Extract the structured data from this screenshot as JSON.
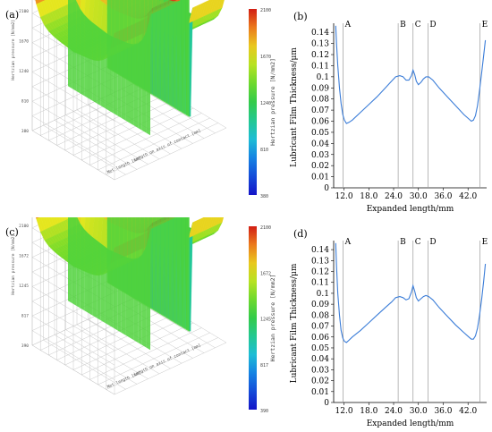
{
  "surface_plots": [
    {
      "label": "(a)",
      "z_axis_title": "Hertzian pressure [N/mm2]",
      "x_axis_title": "Net length [mm]",
      "y_axis_title": "Length on axis of contact [mm]",
      "z_ticks": [
        "380",
        "810",
        "1240",
        "1670",
        "2100"
      ],
      "z_range": [
        0,
        2100
      ],
      "colorbar": {
        "title": "Hertzian pressure [N/mm2]",
        "min": 380,
        "max": 2100,
        "ticks": [
          "2100",
          "1670",
          "1240",
          "810",
          "380"
        ]
      }
    },
    {
      "label": "(c)",
      "z_axis_title": "Hertzian pressure [N/mm2]",
      "x_axis_title": "Net length [mm]",
      "y_axis_title": "Length on axis of contact [mm]",
      "z_ticks": [
        "390",
        "817",
        "1245",
        "1672",
        "2100"
      ],
      "z_range": [
        0,
        2100
      ],
      "colorbar": {
        "title": "Hertzian pressure [N/mm2]",
        "min": 390,
        "max": 2100,
        "ticks": [
          "2100",
          "1672",
          "1245",
          "817",
          "390"
        ]
      }
    }
  ],
  "chart_data": [
    {
      "type": "line",
      "label": "(b)",
      "xlabel": "Expanded length/mm",
      "ylabel": "Lubricant Film Thickness/μm",
      "xlim": [
        9.5,
        46.5
      ],
      "ylim": [
        0,
        0.145
      ],
      "x_ticks": [
        "12.0",
        "18.0",
        "24.0",
        "30.0",
        "36.0",
        "42.0"
      ],
      "x_tick_values": [
        12,
        18,
        24,
        30,
        36,
        42
      ],
      "y_ticks": [
        "0",
        "0.01",
        "0.02",
        "0.03",
        "0.04",
        "0.05",
        "0.06",
        "0.07",
        "0.08",
        "0.09",
        "0.1",
        "0.11",
        "0.12",
        "0.13",
        "0.14"
      ],
      "y_tick_values": [
        0,
        0.01,
        0.02,
        0.03,
        0.04,
        0.05,
        0.06,
        0.07,
        0.08,
        0.09,
        0.1,
        0.11,
        0.12,
        0.13,
        0.14
      ],
      "markers": [
        {
          "label": "A",
          "x": 11.8
        },
        {
          "label": "B",
          "x": 25.1
        },
        {
          "label": "C",
          "x": 28.7
        },
        {
          "label": "D",
          "x": 32.3
        },
        {
          "label": "E",
          "x": 44.9
        }
      ],
      "series": [
        {
          "color": "#3b7dd8",
          "x": [
            10.0,
            10.2,
            10.5,
            10.9,
            11.3,
            11.7,
            12.1,
            12.6,
            13.2,
            14.0,
            16.0,
            18.0,
            20.0,
            22.0,
            23.5,
            24.5,
            25.5,
            26.3,
            27.0,
            27.7,
            28.3,
            28.7,
            29.1,
            29.5,
            30.0,
            30.6,
            31.2,
            31.8,
            32.5,
            33.5,
            35.0,
            37.0,
            39.0,
            41.0,
            42.2,
            42.8,
            43.3,
            43.8,
            44.3,
            44.8,
            45.3,
            45.8,
            46.2
          ],
          "y": [
            0.146,
            0.13,
            0.11,
            0.09,
            0.076,
            0.066,
            0.061,
            0.058,
            0.059,
            0.061,
            0.068,
            0.075,
            0.082,
            0.09,
            0.096,
            0.1,
            0.101,
            0.1,
            0.097,
            0.097,
            0.101,
            0.106,
            0.102,
            0.096,
            0.093,
            0.095,
            0.098,
            0.1,
            0.1,
            0.097,
            0.09,
            0.082,
            0.074,
            0.066,
            0.062,
            0.06,
            0.061,
            0.065,
            0.074,
            0.088,
            0.104,
            0.12,
            0.133
          ]
        }
      ]
    },
    {
      "type": "line",
      "label": "(d)",
      "xlabel": "Expanded length/mm",
      "ylabel": "Lubricant Film Thickness/μm",
      "xlim": [
        9.5,
        46.5
      ],
      "ylim": [
        0,
        0.145
      ],
      "x_ticks": [
        "12.0",
        "18.0",
        "24.0",
        "30.0",
        "36.0",
        "42.0"
      ],
      "x_tick_values": [
        12,
        18,
        24,
        30,
        36,
        42
      ],
      "y_ticks": [
        "0",
        "0.01",
        "0.02",
        "0.03",
        "0.04",
        "0.05",
        "0.06",
        "0.07",
        "0.08",
        "0.09",
        "0.1",
        "0.11",
        "0.12",
        "0.13",
        "0.14"
      ],
      "y_tick_values": [
        0,
        0.01,
        0.02,
        0.03,
        0.04,
        0.05,
        0.06,
        0.07,
        0.08,
        0.09,
        0.1,
        0.11,
        0.12,
        0.13,
        0.14
      ],
      "markers": [
        {
          "label": "A",
          "x": 11.8
        },
        {
          "label": "B",
          "x": 25.1
        },
        {
          "label": "C",
          "x": 28.7
        },
        {
          "label": "D",
          "x": 32.3
        },
        {
          "label": "E",
          "x": 44.9
        }
      ],
      "series": [
        {
          "color": "#3b7dd8",
          "x": [
            10.0,
            10.2,
            10.5,
            10.9,
            11.3,
            11.7,
            12.1,
            12.6,
            13.2,
            14.0,
            16.0,
            18.0,
            20.0,
            22.0,
            23.5,
            24.5,
            25.5,
            26.3,
            27.0,
            27.7,
            28.3,
            28.7,
            29.1,
            29.5,
            30.0,
            30.6,
            31.2,
            31.8,
            32.5,
            33.5,
            35.0,
            37.0,
            39.0,
            41.0,
            42.2,
            42.8,
            43.3,
            43.8,
            44.3,
            44.8,
            45.3,
            45.8,
            46.2
          ],
          "y": [
            0.146,
            0.125,
            0.1,
            0.08,
            0.066,
            0.059,
            0.056,
            0.055,
            0.057,
            0.06,
            0.066,
            0.073,
            0.08,
            0.087,
            0.092,
            0.096,
            0.097,
            0.096,
            0.094,
            0.095,
            0.101,
            0.107,
            0.102,
            0.096,
            0.093,
            0.095,
            0.097,
            0.098,
            0.097,
            0.094,
            0.087,
            0.079,
            0.071,
            0.064,
            0.06,
            0.058,
            0.058,
            0.061,
            0.068,
            0.08,
            0.095,
            0.112,
            0.127
          ]
        }
      ]
    }
  ]
}
